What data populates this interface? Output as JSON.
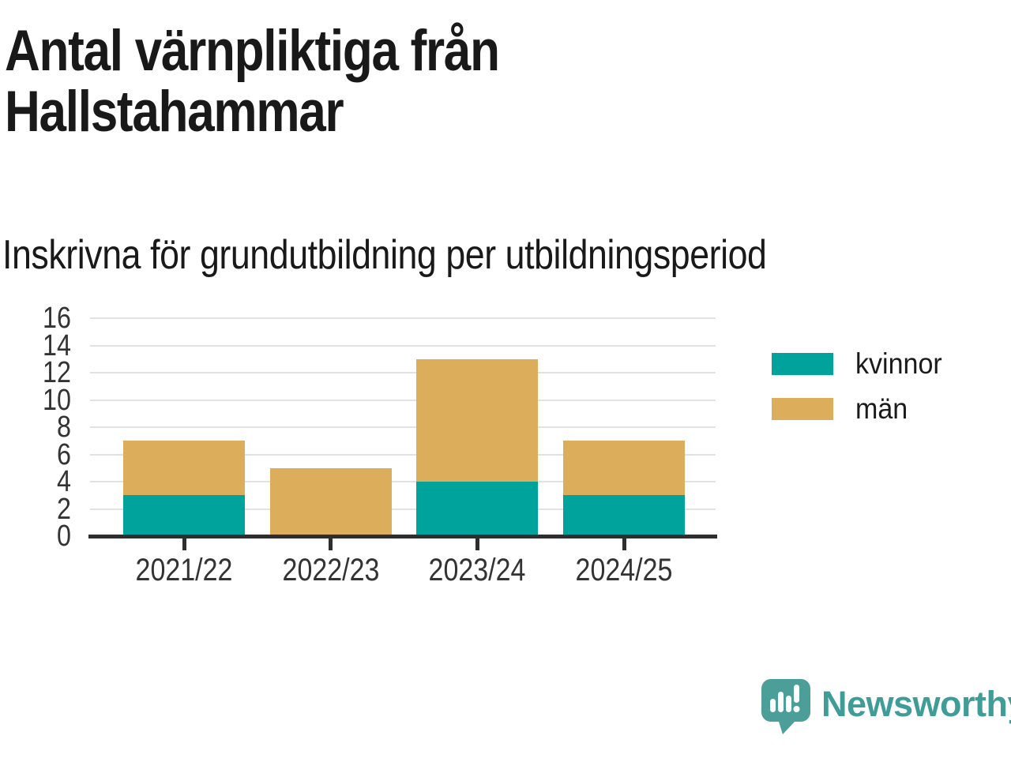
{
  "chart_data": {
    "type": "bar",
    "stacked": true,
    "title": "Antal värnpliktiga från Hallstahammar",
    "subtitle": "Inskrivna för grundutbildning per utbildningsperiod",
    "categories": [
      "2021/22",
      "2022/23",
      "2023/24",
      "2024/25"
    ],
    "series": [
      {
        "name": "kvinnor",
        "color": "#00a39b",
        "values": [
          3,
          0,
          4,
          3
        ]
      },
      {
        "name": "män",
        "color": "#dcae5b",
        "values": [
          4,
          5,
          9,
          4
        ]
      }
    ],
    "totals": [
      7,
      5,
      13,
      7
    ],
    "xlabel": "",
    "ylabel": "",
    "ylim": [
      0,
      16
    ],
    "ytick_step": 2,
    "grid": true,
    "gridline_color": "#e2e2e2",
    "axis_color": "#2e2e2e",
    "label_color": "#333333",
    "legend_position": "right"
  },
  "branding": {
    "logo_text": "Newsworthy",
    "logo_text_color": "#3f9c96",
    "logo_mark_color": "#4c9e99",
    "logo_glyph_color": "#ffffff"
  }
}
